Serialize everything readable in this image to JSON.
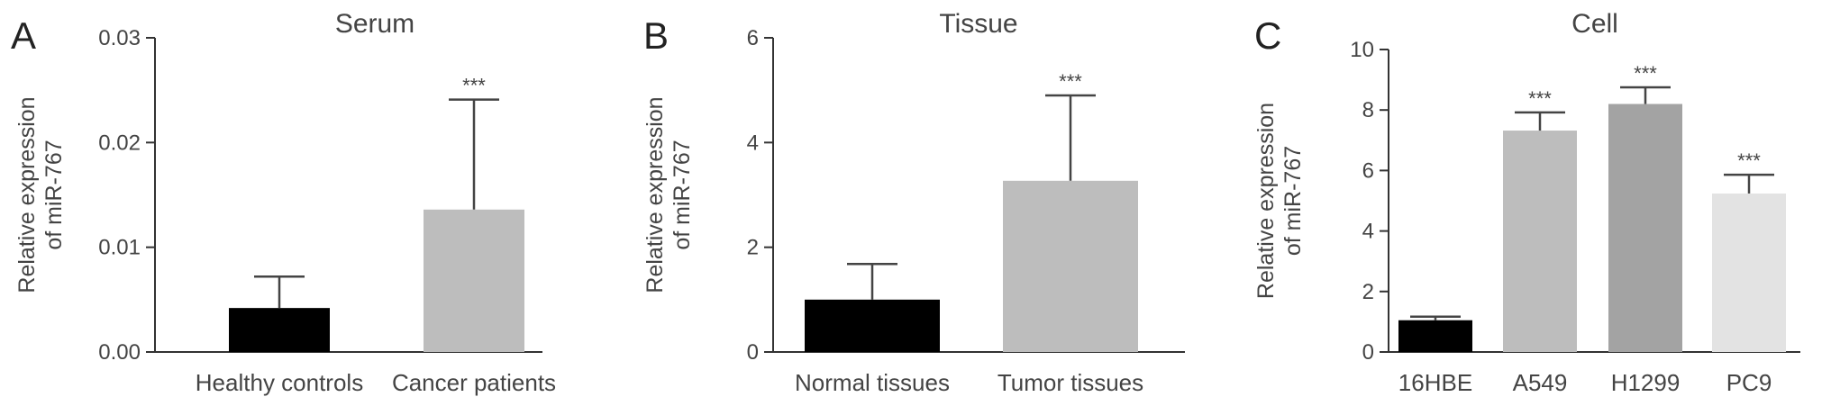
{
  "chart_data": [
    {
      "type": "bar",
      "panel": "A",
      "title": "Serum",
      "ylabel": [
        "Relative expression",
        "of miR-767"
      ],
      "ylim": [
        0,
        0.03
      ],
      "yticks": [
        "0.00",
        "0.01",
        "0.02",
        "0.03"
      ],
      "categories": [
        "Healthy controls",
        "Cancer patients"
      ],
      "values": [
        0.0042,
        0.0136
      ],
      "errors": [
        0.003,
        0.0105
      ],
      "colors": [
        "#000000",
        "#bdbdbd"
      ],
      "significance": [
        "",
        "***"
      ]
    },
    {
      "type": "bar",
      "panel": "B",
      "title": "Tissue",
      "ylabel": [
        "Relative expression",
        "of miR-767"
      ],
      "ylim": [
        0,
        6
      ],
      "yticks": [
        "0",
        "2",
        "4",
        "6"
      ],
      "categories": [
        "Normal tissues",
        "Tumor tissues"
      ],
      "values": [
        1.0,
        3.27
      ],
      "errors": [
        0.68,
        1.63
      ],
      "colors": [
        "#000000",
        "#bdbdbd"
      ],
      "significance": [
        "",
        "***"
      ]
    },
    {
      "type": "bar",
      "panel": "C",
      "title": "Cell",
      "ylabel": [
        "Relative expression",
        "of miR-767"
      ],
      "ylim": [
        0,
        10
      ],
      "yticks": [
        "0",
        "2",
        "4",
        "6",
        "8",
        "10"
      ],
      "categories": [
        "16HBE",
        "A549",
        "H1299",
        "PC9"
      ],
      "values": [
        1.05,
        7.32,
        8.2,
        5.24
      ],
      "errors": [
        0.12,
        0.6,
        0.55,
        0.62
      ],
      "colors": [
        "#000000",
        "#bdbdbd",
        "#a3a3a3",
        "#e3e3e3"
      ],
      "significance": [
        "",
        "***",
        "***",
        "***"
      ]
    }
  ]
}
